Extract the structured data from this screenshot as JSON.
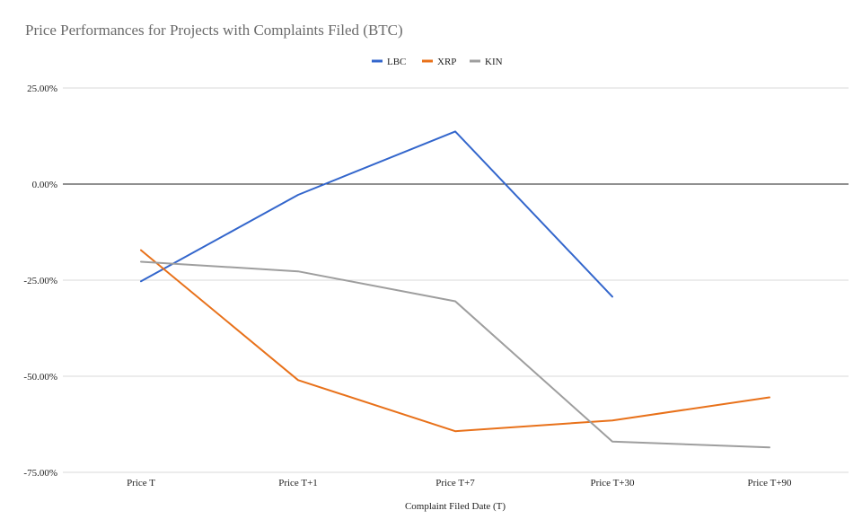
{
  "chart_data": {
    "type": "line",
    "title": "Price Performances for Projects with Complaints Filed (BTC)",
    "xlabel": "Complaint Filed Date (T)",
    "ylabel": "",
    "categories": [
      "Price T",
      "Price T+1",
      "Price T+7",
      "Price T+30",
      "Price T+90"
    ],
    "ylim": [
      -75,
      25
    ],
    "y_ticks": [
      25,
      0,
      -25,
      -50,
      -75
    ],
    "y_tick_labels": [
      "25.00%",
      "0.00%",
      "-25.00%",
      "-50.00%",
      "-75.00%"
    ],
    "grid": true,
    "legend_position": "top-center",
    "series": [
      {
        "name": "LBC",
        "color": "#3366cc",
        "values": [
          -25.3,
          -2.8,
          13.7,
          -29.3,
          null
        ]
      },
      {
        "name": "XRP",
        "color": "#e8711a",
        "values": [
          -17.2,
          -51.0,
          -64.3,
          -61.5,
          -55.5
        ]
      },
      {
        "name": "KIN",
        "color": "#9e9e9e",
        "values": [
          -20.2,
          -22.7,
          -30.5,
          -67.0,
          -68.5
        ]
      }
    ]
  }
}
